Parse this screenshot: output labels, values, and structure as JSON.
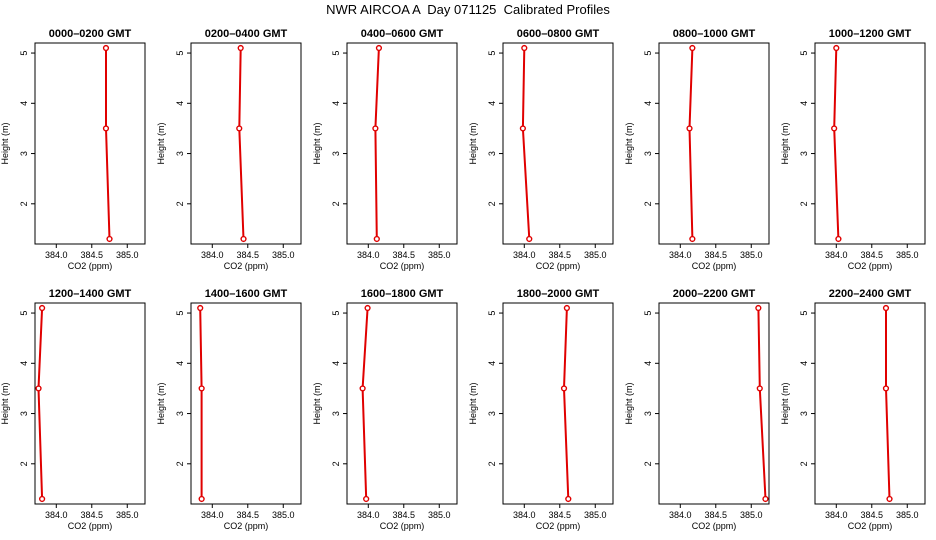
{
  "title": "NWR AIRCOA A  Day 071125  Calibrated Profiles",
  "colors": {
    "profile": "#e00000",
    "axis": "#000000"
  },
  "chart_data": [
    {
      "type": "line",
      "title": "0000–0200 GMT",
      "xlabel": "CO2 (ppm)",
      "ylabel": "Height (m)",
      "xlim": [
        383.7,
        385.25
      ],
      "ylim": [
        1.2,
        5.2
      ],
      "xticks": [
        "384.0",
        "384.5",
        "385.0"
      ],
      "yticks": [
        "2",
        "3",
        "4",
        "5"
      ],
      "x": [
        384.7,
        384.7,
        384.75
      ],
      "y": [
        5.1,
        3.5,
        1.3
      ]
    },
    {
      "type": "line",
      "title": "0200–0400 GMT",
      "xlabel": "CO2 (ppm)",
      "ylabel": "Height (m)",
      "xlim": [
        383.7,
        385.25
      ],
      "ylim": [
        1.2,
        5.2
      ],
      "xticks": [
        "384.0",
        "384.5",
        "385.0"
      ],
      "yticks": [
        "2",
        "3",
        "4",
        "5"
      ],
      "x": [
        384.4,
        384.38,
        384.44
      ],
      "y": [
        5.1,
        3.5,
        1.3
      ]
    },
    {
      "type": "line",
      "title": "0400–0600 GMT",
      "xlabel": "CO2 (ppm)",
      "ylabel": "Height (m)",
      "xlim": [
        383.7,
        385.25
      ],
      "ylim": [
        1.2,
        5.2
      ],
      "xticks": [
        "384.0",
        "384.5",
        "385.0"
      ],
      "yticks": [
        "2",
        "3",
        "4",
        "5"
      ],
      "x": [
        384.15,
        384.1,
        384.12
      ],
      "y": [
        5.1,
        3.5,
        1.3
      ]
    },
    {
      "type": "line",
      "title": "0600–0800 GMT",
      "xlabel": "CO2 (ppm)",
      "ylabel": "Height (m)",
      "xlim": [
        383.7,
        385.25
      ],
      "ylim": [
        1.2,
        5.2
      ],
      "xticks": [
        "384.0",
        "384.5",
        "385.0"
      ],
      "yticks": [
        "2",
        "3",
        "4",
        "5"
      ],
      "x": [
        384.0,
        383.98,
        384.07
      ],
      "y": [
        5.1,
        3.5,
        1.3
      ]
    },
    {
      "type": "line",
      "title": "0800–1000 GMT",
      "xlabel": "CO2 (ppm)",
      "ylabel": "Height (m)",
      "xlim": [
        383.7,
        385.25
      ],
      "ylim": [
        1.2,
        5.2
      ],
      "xticks": [
        "384.0",
        "384.5",
        "385.0"
      ],
      "yticks": [
        "2",
        "3",
        "4",
        "5"
      ],
      "x": [
        384.17,
        384.13,
        384.17
      ],
      "y": [
        5.1,
        3.5,
        1.3
      ]
    },
    {
      "type": "line",
      "title": "1000–1200 GMT",
      "xlabel": "CO2 (ppm)",
      "ylabel": "Height (m)",
      "xlim": [
        383.7,
        385.25
      ],
      "ylim": [
        1.2,
        5.2
      ],
      "xticks": [
        "384.0",
        "384.5",
        "385.0"
      ],
      "yticks": [
        "2",
        "3",
        "4",
        "5"
      ],
      "x": [
        384.0,
        383.97,
        384.03
      ],
      "y": [
        5.1,
        3.5,
        1.3
      ]
    },
    {
      "type": "line",
      "title": "1200–1400 GMT",
      "xlabel": "CO2 (ppm)",
      "ylabel": "Height (m)",
      "xlim": [
        383.7,
        385.25
      ],
      "ylim": [
        1.2,
        5.2
      ],
      "xticks": [
        "384.0",
        "384.5",
        "385.0"
      ],
      "yticks": [
        "2",
        "3",
        "4",
        "5"
      ],
      "x": [
        383.8,
        383.75,
        383.8
      ],
      "y": [
        5.1,
        3.5,
        1.3
      ]
    },
    {
      "type": "line",
      "title": "1400–1600 GMT",
      "xlabel": "CO2 (ppm)",
      "ylabel": "Height (m)",
      "xlim": [
        383.7,
        385.25
      ],
      "ylim": [
        1.2,
        5.2
      ],
      "xticks": [
        "384.0",
        "384.5",
        "385.0"
      ],
      "yticks": [
        "2",
        "3",
        "4",
        "5"
      ],
      "x": [
        383.83,
        383.85,
        383.85
      ],
      "y": [
        5.1,
        3.5,
        1.3
      ]
    },
    {
      "type": "line",
      "title": "1600–1800 GMT",
      "xlabel": "CO2 (ppm)",
      "ylabel": "Height (m)",
      "xlim": [
        383.7,
        385.25
      ],
      "ylim": [
        1.2,
        5.2
      ],
      "xticks": [
        "384.0",
        "384.5",
        "385.0"
      ],
      "yticks": [
        "2",
        "3",
        "4",
        "5"
      ],
      "x": [
        383.99,
        383.92,
        383.97
      ],
      "y": [
        5.1,
        3.5,
        1.3
      ]
    },
    {
      "type": "line",
      "title": "1800–2000 GMT",
      "xlabel": "CO2 (ppm)",
      "ylabel": "Height (m)",
      "xlim": [
        383.7,
        385.25
      ],
      "ylim": [
        1.2,
        5.2
      ],
      "xticks": [
        "384.0",
        "384.5",
        "385.0"
      ],
      "yticks": [
        "2",
        "3",
        "4",
        "5"
      ],
      "x": [
        384.6,
        384.56,
        384.62
      ],
      "y": [
        5.1,
        3.5,
        1.3
      ]
    },
    {
      "type": "line",
      "title": "2000–2200 GMT",
      "xlabel": "CO2 (ppm)",
      "ylabel": "Height (m)",
      "xlim": [
        383.7,
        385.25
      ],
      "ylim": [
        1.2,
        5.2
      ],
      "xticks": [
        "384.0",
        "384.5",
        "385.0"
      ],
      "yticks": [
        "2",
        "3",
        "4",
        "5"
      ],
      "x": [
        385.1,
        385.12,
        385.2
      ],
      "y": [
        5.1,
        3.5,
        1.3
      ]
    },
    {
      "type": "line",
      "title": "2200–2400 GMT",
      "xlabel": "CO2 (ppm)",
      "ylabel": "Height (m)",
      "xlim": [
        383.7,
        385.25
      ],
      "ylim": [
        1.2,
        5.2
      ],
      "xticks": [
        "384.0",
        "384.5",
        "385.0"
      ],
      "yticks": [
        "2",
        "3",
        "4",
        "5"
      ],
      "x": [
        384.7,
        384.7,
        384.75
      ],
      "y": [
        5.1,
        3.5,
        1.3
      ]
    }
  ]
}
